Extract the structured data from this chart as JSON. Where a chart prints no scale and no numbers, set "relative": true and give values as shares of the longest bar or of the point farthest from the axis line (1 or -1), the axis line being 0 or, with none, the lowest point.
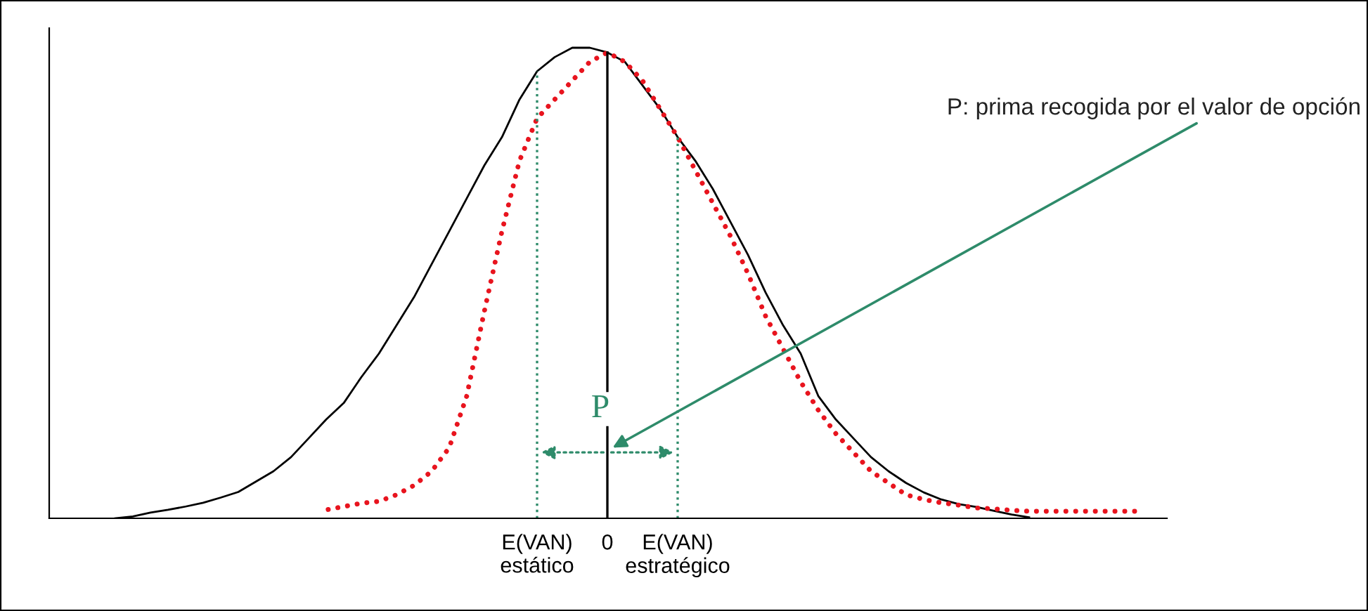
{
  "chart_data": {
    "type": "line",
    "relative": true,
    "categories": [
      null,
      null,
      null,
      null,
      null,
      null,
      null,
      null,
      null,
      null,
      null,
      null,
      null,
      null,
      null,
      null,
      null,
      null,
      null,
      null,
      null,
      null,
      null,
      null,
      null,
      null,
      null,
      null,
      "E(VAN)\nestático",
      null,
      null,
      null,
      "0",
      null,
      null,
      null,
      "E(VAN)\nestratégico",
      null,
      null,
      null,
      null,
      null,
      null,
      null,
      null,
      null,
      null,
      null,
      null,
      null,
      null,
      null,
      null,
      null,
      null,
      null,
      null,
      null,
      null,
      null,
      null,
      null,
      null
    ],
    "series": [
      {
        "color": "#000000",
        "line_style": "solid",
        "values": [
          null,
          null,
          null,
          null,
          0.0,
          0.004,
          0.012,
          0.018,
          0.025,
          0.033,
          0.044,
          0.056,
          0.078,
          0.1,
          0.13,
          0.17,
          0.21,
          0.245,
          0.3,
          0.35,
          0.41,
          0.47,
          0.54,
          0.61,
          0.68,
          0.75,
          0.81,
          0.89,
          0.95,
          0.98,
          1.0,
          1.0,
          0.99,
          0.97,
          0.92,
          0.87,
          0.81,
          0.76,
          0.7,
          0.63,
          0.56,
          0.48,
          0.41,
          0.35,
          0.26,
          0.21,
          0.17,
          0.13,
          0.1,
          0.075,
          0.055,
          0.04,
          0.03,
          0.024,
          0.016,
          0.008,
          0.002,
          null,
          null,
          null,
          null,
          null,
          null
        ]
      },
      {
        "color": "#e8141e",
        "line_style": "dotted",
        "values": [
          null,
          null,
          null,
          null,
          null,
          null,
          null,
          null,
          null,
          null,
          null,
          null,
          null,
          null,
          null,
          null,
          0.018,
          0.025,
          0.032,
          0.036,
          0.05,
          0.07,
          0.1,
          0.15,
          0.26,
          0.44,
          0.61,
          0.76,
          0.85,
          0.89,
          0.93,
          0.97,
          0.99,
          0.97,
          0.93,
          0.87,
          0.81,
          0.74,
          0.67,
          0.6,
          0.52,
          0.43,
          0.36,
          0.29,
          0.23,
          0.18,
          0.14,
          0.1,
          0.075,
          0.05,
          0.04,
          0.033,
          0.028,
          0.022,
          0.02,
          0.017,
          0.015,
          0.015,
          0.015,
          0.015,
          0.015,
          0.015,
          0.015
        ]
      }
    ],
    "ref_lines": [
      {
        "axis": "x",
        "value": "E(VAN)\nestático",
        "color": "#2e8b6a",
        "line_style": "dotted"
      },
      {
        "axis": "x",
        "value": "0",
        "color": "#000000",
        "line_style": "solid"
      },
      {
        "axis": "x",
        "value": "E(VAN)\nestratégico",
        "color": "#2e8b6a",
        "line_style": "dotted"
      }
    ],
    "annotations": [
      "P",
      "P: prima recogida por el valor de opción"
    ],
    "grid": false,
    "legend": false
  }
}
